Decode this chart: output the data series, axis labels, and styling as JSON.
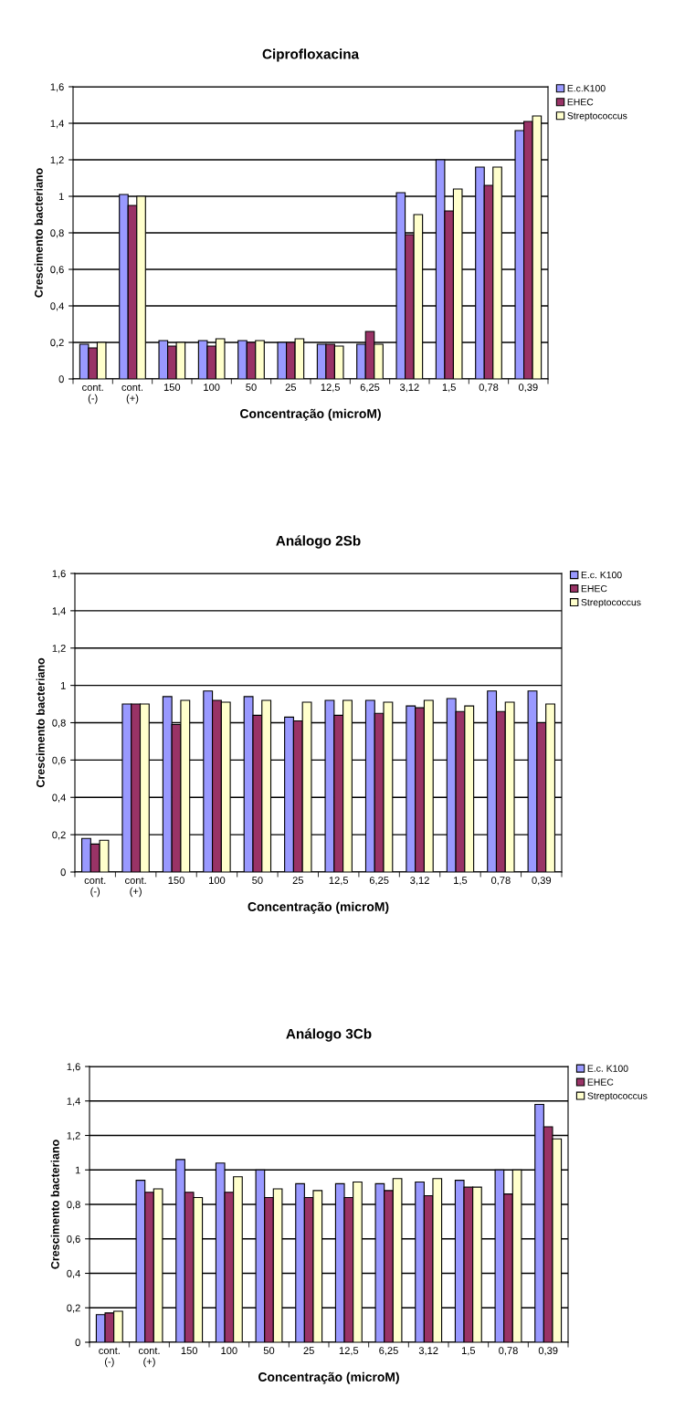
{
  "chart_data": [
    {
      "type": "bar",
      "title": "Ciprofloxacina",
      "xlabel": "Concentração (microM)",
      "ylabel": "Crescimento bacteriano",
      "categories": [
        "cont.\n(-)",
        "cont.\n(+)",
        "150",
        "100",
        "50",
        "25",
        "12,5",
        "6,25",
        "3,12",
        "1,5",
        "0,78",
        "0,39"
      ],
      "series": [
        {
          "name": "E.c.K100",
          "color": "#9999ff",
          "values": [
            0.19,
            1.01,
            0.21,
            0.21,
            0.21,
            0.2,
            0.19,
            0.19,
            1.02,
            1.2,
            1.16,
            1.36
          ]
        },
        {
          "name": "EHEC",
          "color": "#993366",
          "values": [
            0.17,
            0.95,
            0.18,
            0.18,
            0.2,
            0.2,
            0.19,
            0.26,
            0.79,
            0.92,
            1.06,
            1.41
          ]
        },
        {
          "name": "Streptococcus",
          "color": "#ffffcc",
          "values": [
            0.2,
            1.0,
            0.2,
            0.22,
            0.21,
            0.22,
            0.18,
            0.19,
            0.9,
            1.04,
            1.16,
            1.44
          ]
        }
      ],
      "ylim": [
        0,
        1.6
      ],
      "yticks": [
        0,
        {
          "value": 0.2,
          "label": "0,2"
        },
        {
          "value": 0.4,
          "label": "0,4"
        },
        {
          "value": 0.6,
          "label": "0,6"
        },
        {
          "value": 0.8,
          "label": "0,8"
        },
        1,
        {
          "value": 1.2,
          "label": "1,2"
        },
        {
          "value": 1.4,
          "label": "1,4"
        },
        {
          "value": 1.6,
          "label": "1,6"
        }
      ],
      "grid": "y",
      "legend": "top right"
    },
    {
      "type": "bar",
      "title": "Análogo 2Sb",
      "xlabel": "Concentração (microM)",
      "ylabel": "Crescimento bacteriano",
      "categories": [
        "cont.\n(-)",
        "cont.\n(+)",
        "150",
        "100",
        "50",
        "25",
        "12,5",
        "6,25",
        "3,12",
        "1,5",
        "0,78",
        "0,39"
      ],
      "series": [
        {
          "name": "E.c. K100",
          "color": "#9999ff",
          "values": [
            0.18,
            0.9,
            0.94,
            0.97,
            0.94,
            0.83,
            0.92,
            0.92,
            0.89,
            0.93,
            0.97,
            0.97
          ]
        },
        {
          "name": "EHEC",
          "color": "#993366",
          "values": [
            0.15,
            0.9,
            0.79,
            0.92,
            0.84,
            0.81,
            0.84,
            0.85,
            0.88,
            0.86,
            0.86,
            0.8
          ]
        },
        {
          "name": "Streptococcus",
          "color": "#ffffcc",
          "values": [
            0.17,
            0.9,
            0.92,
            0.91,
            0.92,
            0.91,
            0.92,
            0.91,
            0.92,
            0.89,
            0.91,
            0.9
          ]
        }
      ],
      "ylim": [
        0,
        1.6
      ],
      "yticks": [
        0,
        {
          "value": 0.2,
          "label": "0,2"
        },
        {
          "value": 0.4,
          "label": "0,4"
        },
        {
          "value": 0.6,
          "label": "0,6"
        },
        {
          "value": 0.8,
          "label": "0,8"
        },
        1,
        {
          "value": 1.2,
          "label": "1,2"
        },
        {
          "value": 1.4,
          "label": "1,4"
        },
        {
          "value": 1.6,
          "label": "1,6"
        }
      ],
      "grid": "y",
      "legend": "top right"
    },
    {
      "type": "bar",
      "title": "Análogo 3Cb",
      "xlabel": "Concentração (microM)",
      "ylabel": "Crescimento bacteriano",
      "categories": [
        "cont.\n(-)",
        "cont.\n(+)",
        "150",
        "100",
        "50",
        "25",
        "12,5",
        "6,25",
        "3,12",
        "1,5",
        "0,78",
        "0,39"
      ],
      "series": [
        {
          "name": "E.c. K100",
          "color": "#9999ff",
          "values": [
            0.16,
            0.94,
            1.06,
            1.04,
            1.0,
            0.92,
            0.92,
            0.92,
            0.93,
            0.94,
            1.0,
            1.38
          ]
        },
        {
          "name": "EHEC",
          "color": "#993366",
          "values": [
            0.17,
            0.87,
            0.87,
            0.87,
            0.84,
            0.84,
            0.84,
            0.88,
            0.85,
            0.9,
            0.86,
            1.25
          ]
        },
        {
          "name": "Streptococcus",
          "color": "#ffffcc",
          "values": [
            0.18,
            0.89,
            0.84,
            0.96,
            0.89,
            0.88,
            0.93,
            0.95,
            0.95,
            0.9,
            1.0,
            1.18
          ]
        }
      ],
      "ylim": [
        0,
        1.6
      ],
      "yticks": [
        0,
        {
          "value": 0.2,
          "label": "0,2"
        },
        {
          "value": 0.4,
          "label": "0,4"
        },
        {
          "value": 0.6,
          "label": "0,6"
        },
        {
          "value": 0.8,
          "label": "0,8"
        },
        1,
        {
          "value": 1.2,
          "label": "1,2"
        },
        {
          "value": 1.4,
          "label": "1,4"
        },
        {
          "value": 1.6,
          "label": "1,6"
        }
      ],
      "grid": "y",
      "legend": "top right"
    }
  ]
}
